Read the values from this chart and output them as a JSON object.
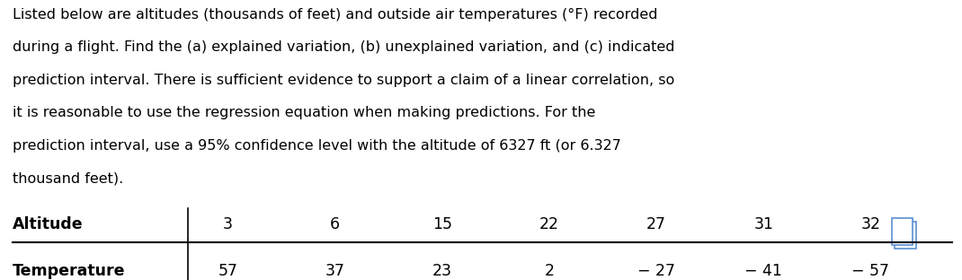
{
  "lines": [
    "Listed below are altitudes (thousands of feet) and outside air temperatures (°F) recorded",
    "during a flight. Find the (a) explained variation, (b) unexplained variation, and (c) indicated",
    "prediction interval. There is sufficient evidence to support a claim of a linear correlation, so",
    "it is reasonable to use the regression equation when making predictions. For the",
    "prediction interval, use a 95% confidence level with the altitude of 6327 ft (or 6.327",
    "thousand feet)."
  ],
  "row1_label": "Altitude",
  "row2_label": "Temperature",
  "altitudes": [
    "3",
    "6",
    "15",
    "22",
    "27",
    "31",
    "32"
  ],
  "temp_display": [
    "57",
    "37",
    "23",
    "2",
    "− 27",
    "− 41",
    "− 57"
  ],
  "background_color": "#ffffff",
  "text_color": "#000000",
  "icon_color": "#5b8fd4",
  "font_size_para": 11.5,
  "font_size_table": 12.5,
  "table_label_fontsize": 12.5
}
